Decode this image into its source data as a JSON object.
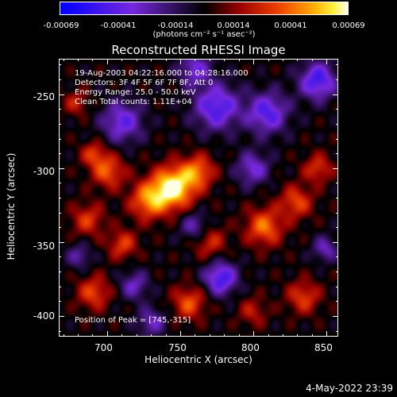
{
  "colorbar": {
    "ticks": [
      "-0.00069",
      "-0.00041",
      "-0.00014",
      "0.00014",
      "0.00041",
      "0.00069"
    ],
    "units": "(photons cm⁻² s⁻¹ asec⁻²)"
  },
  "info": {
    "time_range": "19-Aug-2003 04:22:16.000 to 04:28:16.000",
    "detectors": "Detectors: 3F 4F 5F 6F 7F 8F, Att 0",
    "energy": "Energy Range: 25.0 - 50.0 keV",
    "clean": "Clean    Total counts: 1.11E+04",
    "peak": "Position of Peak = [745,-315]"
  },
  "datestamp": "4-May-2022 23:39",
  "chart_data": {
    "type": "heatmap",
    "title": "Reconstructed RHESSI Image",
    "xlabel": "Heliocentric X (arcsec)",
    "ylabel": "Heliocentric Y (arcsec)",
    "xlim": [
      667,
      858
    ],
    "ylim": [
      -414,
      -226
    ],
    "x_ticks": [
      700,
      750,
      800,
      850
    ],
    "y_ticks": [
      -250,
      -300,
      -350,
      -400
    ],
    "color_range": [
      -0.00069,
      0.00069
    ],
    "colormap": "blue-purple-black-red-orange-yellow-white",
    "peak_position": [
      745,
      -315
    ],
    "sources": [
      {
        "x": 745,
        "y": -313,
        "amplitude": 0.00069,
        "sigma": 10
      },
      {
        "x": 728,
        "y": -322,
        "amplitude": 0.00045,
        "sigma": 9
      },
      {
        "x": 762,
        "y": -302,
        "amplitude": 0.0004,
        "sigma": 8
      },
      {
        "x": 700,
        "y": -302,
        "amplitude": 0.00038,
        "sigma": 8
      },
      {
        "x": 690,
        "y": -290,
        "amplitude": 0.0003,
        "sigma": 6
      },
      {
        "x": 686,
        "y": -335,
        "amplitude": 0.0003,
        "sigma": 8
      },
      {
        "x": 710,
        "y": -352,
        "amplitude": 0.00032,
        "sigma": 7
      },
      {
        "x": 690,
        "y": -385,
        "amplitude": 0.00034,
        "sigma": 8
      },
      {
        "x": 756,
        "y": -392,
        "amplitude": 0.00036,
        "sigma": 8
      },
      {
        "x": 770,
        "y": -350,
        "amplitude": 0.00028,
        "sigma": 8
      },
      {
        "x": 808,
        "y": -340,
        "amplitude": 0.00042,
        "sigma": 9
      },
      {
        "x": 830,
        "y": -323,
        "amplitude": 0.00034,
        "sigma": 8
      },
      {
        "x": 845,
        "y": -300,
        "amplitude": 0.0003,
        "sigma": 7
      },
      {
        "x": 835,
        "y": -388,
        "amplitude": 0.00032,
        "sigma": 8
      },
      {
        "x": 800,
        "y": -398,
        "amplitude": 0.00022,
        "sigma": 7
      },
      {
        "x": 678,
        "y": -255,
        "amplitude": 0.00024,
        "sigma": 6
      },
      {
        "x": 710,
        "y": -268,
        "amplitude": -0.0004,
        "sigma": 10
      },
      {
        "x": 775,
        "y": -258,
        "amplitude": -0.00048,
        "sigma": 11
      },
      {
        "x": 810,
        "y": -262,
        "amplitude": -0.00045,
        "sigma": 10
      },
      {
        "x": 845,
        "y": -240,
        "amplitude": -0.0005,
        "sigma": 9
      },
      {
        "x": 800,
        "y": -300,
        "amplitude": -0.00035,
        "sigma": 8
      },
      {
        "x": 760,
        "y": -340,
        "amplitude": -0.0003,
        "sigma": 7
      },
      {
        "x": 778,
        "y": -375,
        "amplitude": -0.0005,
        "sigma": 8
      },
      {
        "x": 718,
        "y": -380,
        "amplitude": -0.0003,
        "sigma": 7
      },
      {
        "x": 680,
        "y": -360,
        "amplitude": -0.00025,
        "sigma": 6
      },
      {
        "x": 730,
        "y": -405,
        "amplitude": -0.0003,
        "sigma": 7
      },
      {
        "x": 850,
        "y": -355,
        "amplitude": -0.0003,
        "sigma": 6
      },
      {
        "x": 760,
        "y": -232,
        "amplitude": -0.00035,
        "sigma": 8
      }
    ]
  }
}
